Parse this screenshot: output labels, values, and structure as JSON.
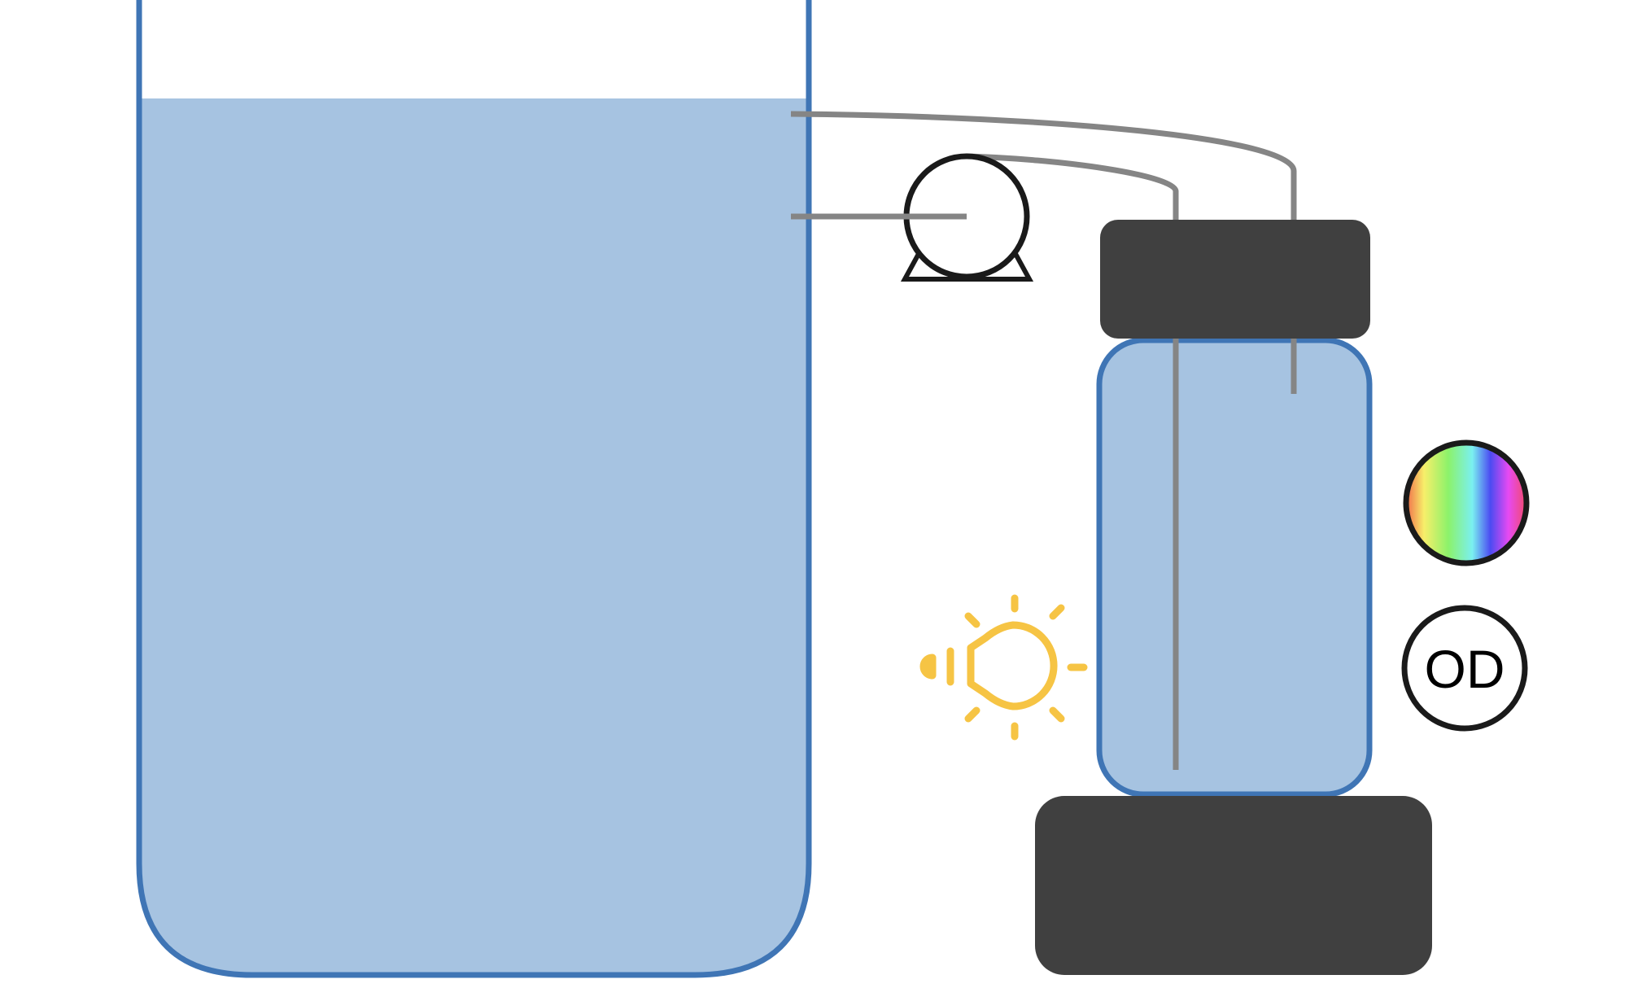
{
  "diagram": {
    "od_label": "OD",
    "colors": {
      "liquid": "#a6c3e1",
      "vessel_outline": "#3f75b5",
      "tube": "#858585",
      "dark_block": "#404040",
      "pump_outline": "#1a1a1a",
      "light_icon": "#f6c444",
      "sensor_outline": "#1a1a1a"
    },
    "icons": [
      "pump-icon",
      "light-bulb-icon",
      "color-sensor-icon",
      "od-sensor-icon"
    ]
  }
}
